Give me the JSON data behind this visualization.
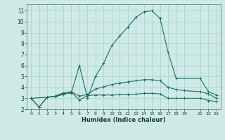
{
  "bg_color": "#ceeae7",
  "grid_color": "#aed4d0",
  "line_color": "#1a6e64",
  "marker": "+",
  "xlabel": "Humidex (Indice chaleur)",
  "xlim": [
    -0.5,
    23.5
  ],
  "ylim": [
    2.0,
    11.6
  ],
  "yticks": [
    2,
    3,
    4,
    5,
    6,
    7,
    8,
    9,
    10,
    11
  ],
  "xtick_positions": [
    0,
    1,
    2,
    3,
    4,
    5,
    6,
    7,
    8,
    9,
    10,
    11,
    12,
    13,
    14,
    15,
    16,
    17,
    18,
    19,
    21,
    22,
    23
  ],
  "xtick_labels": [
    "0",
    "1",
    "2",
    "3",
    "4",
    "5",
    "6",
    "7",
    "8",
    "9",
    "10",
    "11",
    "12",
    "13",
    "14",
    "15",
    "16",
    "17",
    "18",
    "19",
    "21",
    "22",
    "23"
  ],
  "series": [
    {
      "x": [
        0,
        1,
        2,
        3,
        4,
        5,
        6,
        7,
        8,
        9,
        10,
        11,
        12,
        13,
        14,
        15,
        16,
        17,
        18,
        19,
        21,
        22,
        23
      ],
      "y": [
        3.0,
        2.2,
        3.1,
        3.15,
        3.35,
        3.55,
        2.85,
        3.25,
        3.3,
        3.3,
        3.3,
        3.32,
        3.35,
        3.38,
        3.45,
        3.45,
        3.4,
        3.0,
        3.0,
        3.0,
        3.0,
        2.8,
        2.7
      ]
    },
    {
      "x": [
        0,
        1,
        2,
        3,
        4,
        5,
        6,
        7,
        8,
        9,
        10,
        11,
        12,
        13,
        14,
        15,
        16,
        17,
        18,
        19,
        21,
        22,
        23
      ],
      "y": [
        3.0,
        2.2,
        3.1,
        3.2,
        3.5,
        3.6,
        3.2,
        3.35,
        3.85,
        4.05,
        4.25,
        4.4,
        4.5,
        4.6,
        4.7,
        4.7,
        4.6,
        4.0,
        3.8,
        3.7,
        3.6,
        3.4,
        3.0
      ]
    },
    {
      "x": [
        0,
        2,
        3,
        4,
        5,
        6,
        7,
        8,
        9,
        10,
        11,
        12,
        13,
        14,
        15,
        16,
        17,
        18,
        21,
        22,
        23
      ],
      "y": [
        3.0,
        3.1,
        3.2,
        3.4,
        3.5,
        6.0,
        3.0,
        5.0,
        6.2,
        7.8,
        8.7,
        9.5,
        10.4,
        10.9,
        11.0,
        10.3,
        7.2,
        4.8,
        4.8,
        3.6,
        3.3
      ]
    }
  ]
}
